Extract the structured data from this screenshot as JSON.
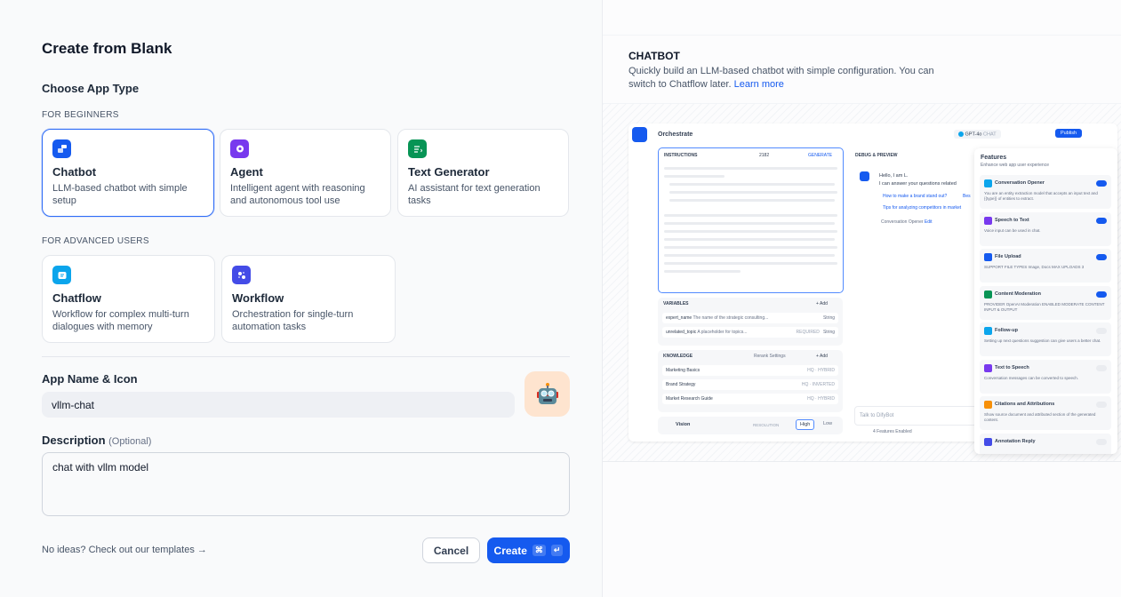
{
  "title": "Create from Blank",
  "choose_type": "Choose App Type",
  "beginners_label": "FOR BEGINNERS",
  "advanced_label": "FOR ADVANCED USERS",
  "app_types": [
    {
      "name": "Chatbot",
      "desc": "LLM-based chatbot with simple setup",
      "icon": "chatbot-icon",
      "color": "#155aef",
      "selected": true
    },
    {
      "name": "Agent",
      "desc": "Intelligent agent with reasoning and autonomous tool use",
      "icon": "agent-icon",
      "color": "#7839ee"
    },
    {
      "name": "Text Generator",
      "desc": "AI assistant for text generation tasks",
      "icon": "text-generator-icon",
      "color": "#079455"
    },
    {
      "name": "Chatflow",
      "desc": "Workflow for complex multi-turn dialogues with memory",
      "icon": "chatflow-icon",
      "color": "#0ba5ec"
    },
    {
      "name": "Workflow",
      "desc": "Orchestration for single-turn automation tasks",
      "icon": "workflow-icon",
      "color": "#444ce7"
    }
  ],
  "app_name_label": "App Name & Icon",
  "app_name_value": "vllm-chat",
  "app_icon": "robot-icon",
  "description_label": "Description",
  "description_optional": "(Optional)",
  "description_value": "chat with vllm model",
  "templates_link": "No ideas? Check out our templates →",
  "cancel": "Cancel",
  "create": "Create",
  "create_kbd": [
    "⌘",
    "↵"
  ],
  "preview": {
    "title": "CHATBOT",
    "desc": "Quickly build an LLM-based chatbot with simple configuration. You can switch to Chatflow later.",
    "learn_more": "Learn more",
    "orchestrate": "Orchestrate",
    "model": "GPT-4o",
    "model_tag": "CHAT",
    "publish": "Publish",
    "instructions": "INSTRUCTIONS",
    "instr_count": "2182",
    "generate": "GENERATE",
    "variables": "VARIABLES",
    "add": "+ Add",
    "vars": [
      {
        "name": "expert_name",
        "desc": "The name of the strategic consulting...",
        "type": "String"
      },
      {
        "name": "unrelated_topic",
        "desc": "A placeholder for topics...",
        "tag": "REQUIRED",
        "type": "String"
      }
    ],
    "knowledge": "KNOWLEDGE",
    "rerank": "Rerank Settings",
    "kb": [
      {
        "name": "Marketing Basics",
        "tag": "HQ · HYBRID"
      },
      {
        "name": "Brand Strategy",
        "tag": "HQ · INVERTED"
      },
      {
        "name": "Market Research Guide",
        "tag": "HQ · HYBRID"
      }
    ],
    "vision": "Vision",
    "resolution": "RESOLUTION",
    "high": "High",
    "low": "Low",
    "debug": "DEBUG & PREVIEW",
    "hello": "Hello, I am L.",
    "hello2": "I can answer your questions related",
    "q1": "How to make a brand stand out?",
    "q1b": "Bes",
    "q2": "Tips for analyzing competitors in market",
    "opener": "Conversation Opener",
    "edit": "Edit",
    "talk": "Talk to DifyBot",
    "enabled": "4 Features Enabled",
    "features_title": "Features",
    "features_sub": "Enhance web app user experience",
    "features": [
      {
        "name": "Conversation Opener",
        "desc": "You are an entity extraction model that accepts an input text and {{type}} of entities to extract.",
        "on": true,
        "color": "#0ba5ec"
      },
      {
        "name": "Speech to Text",
        "desc": "Voice input can be used in chat.",
        "on": true,
        "color": "#7839ee"
      },
      {
        "name": "File Upload",
        "desc": "SUPPORT FILE TYPES  Image, Docs   MAX UPLOADS 3",
        "on": true,
        "color": "#155aef"
      },
      {
        "name": "Content Moderation",
        "desc": "PROVIDER OpenAI Moderation   ENABLED MODERATE CONTENT INPUT & OUTPUT",
        "on": true,
        "color": "#079455"
      },
      {
        "name": "Follow-up",
        "desc": "Setting up next questions suggestion can give users a better chat.",
        "on": false,
        "color": "#0ba5ec"
      },
      {
        "name": "Text to Speech",
        "desc": "Conversation messages can be converted to speech.",
        "on": false,
        "color": "#7839ee"
      },
      {
        "name": "Citations and Attributions",
        "desc": "Show source document and attributed section of the generated content.",
        "on": false,
        "color": "#f79009"
      },
      {
        "name": "Annotation Reply",
        "desc": "",
        "on": false,
        "color": "#444ce7"
      }
    ]
  }
}
